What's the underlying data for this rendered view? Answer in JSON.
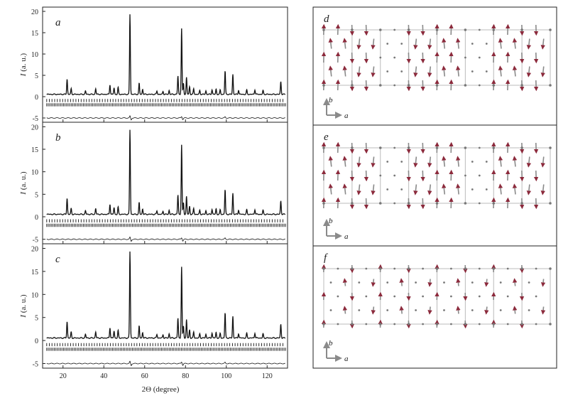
{
  "chart_data": [
    {
      "type": "line",
      "panel_label": "a",
      "ylabel": "I (a. u.)",
      "ylabel_italic": "I",
      "ylabel_rest": " (a. u.)",
      "ylim": [
        -6,
        21
      ],
      "yticks": [
        -5,
        0,
        5,
        10,
        15,
        20
      ],
      "xlim": [
        10,
        130
      ],
      "xticks": [
        20,
        40,
        60,
        80,
        100,
        120
      ],
      "series": [
        {
          "name": "",
          "role": "observed/calculated profile",
          "peaks": [
            [
              22,
              3.6
            ],
            [
              24,
              1.3
            ],
            [
              31,
              0.8
            ],
            [
              36,
              1.3
            ],
            [
              43,
              2.3
            ],
            [
              45,
              1.5
            ],
            [
              47,
              1.6
            ],
            [
              52.8,
              18.8
            ],
            [
              57.3,
              2.6
            ],
            [
              59,
              1.2
            ],
            [
              66,
              0.8
            ],
            [
              69,
              0.7
            ],
            [
              72,
              0.9
            ],
            [
              76.3,
              4.3
            ],
            [
              78.1,
              15.5
            ],
            [
              79,
              2.6
            ],
            [
              80.5,
              4.0
            ],
            [
              82,
              1.8
            ],
            [
              84,
              1.3
            ],
            [
              87,
              0.9
            ],
            [
              90,
              0.8
            ],
            [
              93,
              1.1
            ],
            [
              95,
              1.2
            ],
            [
              97,
              1.0
            ],
            [
              99.4,
              5.5
            ],
            [
              103.2,
              4.7
            ],
            [
              106,
              1.0
            ],
            [
              110,
              1.0
            ],
            [
              114,
              1.1
            ],
            [
              118,
              0.9
            ],
            [
              126.7,
              3.0
            ]
          ],
          "baseline": 0.55
        },
        {
          "name": "",
          "role": "difference curve",
          "features": [
            [
              52.8,
              0.45
            ],
            [
              53.4,
              -0.45
            ],
            [
              78.1,
              0.35
            ],
            [
              78.7,
              -0.35
            ],
            [
              99.4,
              0.25
            ]
          ],
          "offset": -5.0
        }
      ],
      "reflection_rows": [
        {
          "y": -0.9,
          "start": 12,
          "end": 128,
          "step": 1.3
        },
        {
          "y": -1.9,
          "start": 12,
          "end": 129,
          "step": 0.75
        }
      ]
    },
    {
      "type": "line",
      "panel_label": "b",
      "ylabel": "I (a. u.)",
      "ylabel_italic": "I",
      "ylabel_rest": " (a. u.)",
      "ylim": [
        -6,
        21
      ],
      "yticks": [
        -5,
        0,
        5,
        10,
        15,
        20
      ],
      "xlim": [
        10,
        130
      ],
      "xticks": [
        20,
        40,
        60,
        80,
        100,
        120
      ],
      "series": [
        {
          "name": "",
          "role": "observed/calculated profile",
          "peaks": [
            [
              22,
              3.6
            ],
            [
              24,
              1.3
            ],
            [
              31,
              0.8
            ],
            [
              36,
              1.3
            ],
            [
              43,
              2.3
            ],
            [
              45,
              1.5
            ],
            [
              47,
              1.6
            ],
            [
              52.8,
              18.8
            ],
            [
              57.3,
              2.6
            ],
            [
              59,
              1.2
            ],
            [
              66,
              0.8
            ],
            [
              69,
              0.7
            ],
            [
              72,
              0.9
            ],
            [
              76.3,
              4.3
            ],
            [
              78.1,
              15.5
            ],
            [
              79,
              2.6
            ],
            [
              80.5,
              4.0
            ],
            [
              82,
              1.8
            ],
            [
              84,
              1.3
            ],
            [
              87,
              0.9
            ],
            [
              90,
              0.8
            ],
            [
              93,
              1.1
            ],
            [
              95,
              1.2
            ],
            [
              97,
              1.0
            ],
            [
              99.4,
              5.5
            ],
            [
              103.2,
              4.7
            ],
            [
              106,
              1.0
            ],
            [
              110,
              1.0
            ],
            [
              114,
              1.1
            ],
            [
              118,
              0.9
            ],
            [
              126.7,
              3.0
            ]
          ],
          "baseline": 0.55
        },
        {
          "name": "",
          "role": "difference curve",
          "features": [
            [
              52.8,
              0.45
            ],
            [
              53.4,
              -0.45
            ],
            [
              78.1,
              0.35
            ],
            [
              78.7,
              -0.35
            ],
            [
              99.4,
              0.25
            ]
          ],
          "offset": -5.0
        }
      ],
      "reflection_rows": [
        {
          "y": -0.9,
          "start": 12,
          "end": 128,
          "step": 1.3
        },
        {
          "y": -1.9,
          "start": 12,
          "end": 129,
          "step": 0.75
        }
      ]
    },
    {
      "type": "line",
      "panel_label": "c",
      "ylabel": "I (a. u.)",
      "ylabel_italic": "I",
      "ylabel_rest": " (a. u.)",
      "xlabel": "2Θ (degree)",
      "ylim": [
        -6,
        21
      ],
      "yticks": [
        -5,
        0,
        5,
        10,
        15,
        20
      ],
      "xlim": [
        10,
        130
      ],
      "xticks": [
        20,
        40,
        60,
        80,
        100,
        120
      ],
      "series": [
        {
          "name": "",
          "role": "observed/calculated profile",
          "peaks": [
            [
              22,
              3.6
            ],
            [
              24,
              1.3
            ],
            [
              31,
              0.8
            ],
            [
              36,
              1.3
            ],
            [
              43,
              2.3
            ],
            [
              45,
              1.5
            ],
            [
              47,
              1.6
            ],
            [
              52.8,
              18.8
            ],
            [
              57.3,
              2.6
            ],
            [
              59,
              1.2
            ],
            [
              66,
              0.8
            ],
            [
              69,
              0.7
            ],
            [
              72,
              0.9
            ],
            [
              76.3,
              4.3
            ],
            [
              78.1,
              15.5
            ],
            [
              79,
              2.6
            ],
            [
              80.5,
              4.0
            ],
            [
              82,
              1.8
            ],
            [
              84,
              1.3
            ],
            [
              87,
              0.9
            ],
            [
              90,
              0.8
            ],
            [
              93,
              1.1
            ],
            [
              95,
              1.2
            ],
            [
              97,
              1.0
            ],
            [
              99.4,
              5.5
            ],
            [
              103.2,
              4.7
            ],
            [
              106,
              1.0
            ],
            [
              110,
              1.0
            ],
            [
              114,
              1.1
            ],
            [
              118,
              0.9
            ],
            [
              126.7,
              3.0
            ]
          ],
          "baseline": 0.55
        },
        {
          "name": "",
          "role": "difference curve",
          "features": [
            [
              52.8,
              0.45
            ],
            [
              53.4,
              -0.45
            ],
            [
              78.1,
              0.35
            ],
            [
              78.7,
              -0.35
            ],
            [
              99.4,
              0.25
            ]
          ],
          "offset": -5.0
        }
      ],
      "reflection_rows": [
        {
          "y": -0.9,
          "start": 12,
          "end": 128,
          "step": 1.3
        },
        {
          "y": -1.9,
          "start": 12,
          "end": 129,
          "step": 0.75
        }
      ]
    }
  ],
  "structures": [
    {
      "panel_label": "d",
      "axis_b": "b",
      "axis_a": "a",
      "pattern": "full"
    },
    {
      "panel_label": "e",
      "axis_b": "b",
      "axis_a": "a",
      "pattern": "full"
    },
    {
      "panel_label": "f",
      "axis_b": "b",
      "axis_a": "a",
      "pattern": "sparse"
    }
  ],
  "colors": {
    "line": "#111111",
    "grid": "#bbbbbb",
    "arrow": "#8a8a8a",
    "arrow_tip": "#8c2a3c",
    "atom": "#777777",
    "axis_arrow": "#8a8a8a"
  }
}
